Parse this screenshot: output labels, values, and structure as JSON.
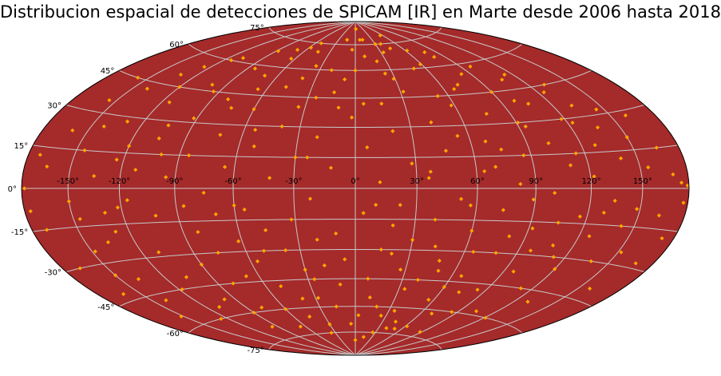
{
  "chart_data": {
    "type": "scatter",
    "title": "Distribucion espacial de detecciones de SPICAM [IR] en Marte desde 2006 hasta 2018",
    "projection": "hammer",
    "xlabel": "",
    "ylabel": "",
    "xlim": [
      -180,
      180
    ],
    "ylim": [
      -90,
      90
    ],
    "grid": true,
    "background_color": "#a52a2a",
    "marker_color": "#ffa500",
    "grid_color": "#c8c8c8",
    "x_ticks": [
      {
        "value": -150,
        "label": "-150°"
      },
      {
        "value": -120,
        "label": "-120°"
      },
      {
        "value": -90,
        "label": "-90°"
      },
      {
        "value": -60,
        "label": "-60°"
      },
      {
        "value": -30,
        "label": "-30°"
      },
      {
        "value": 0,
        "label": "0°"
      },
      {
        "value": 30,
        "label": "30°"
      },
      {
        "value": 60,
        "label": "60°"
      },
      {
        "value": 90,
        "label": "90°"
      },
      {
        "value": 120,
        "label": "120°"
      },
      {
        "value": 150,
        "label": "150°"
      }
    ],
    "y_ticks": [
      {
        "value": -75,
        "label": "-75°"
      },
      {
        "value": -60,
        "label": "-60°"
      },
      {
        "value": -45,
        "label": "-45°"
      },
      {
        "value": -30,
        "label": "-30°"
      },
      {
        "value": -15,
        "label": "-15°"
      },
      {
        "value": 0,
        "label": "0°"
      },
      {
        "value": 15,
        "label": "15°"
      },
      {
        "value": 30,
        "label": "30°"
      },
      {
        "value": 45,
        "label": "45°"
      },
      {
        "value": 60,
        "label": "60°"
      },
      {
        "value": 75,
        "label": "75°"
      }
    ],
    "series": [
      {
        "points": [
          [
            -178,
            0
          ],
          [
            -170,
            -15
          ],
          [
            -165,
            8
          ],
          [
            -160,
            22
          ],
          [
            -155,
            35
          ],
          [
            -150,
            -5
          ],
          [
            -148,
            -25
          ],
          [
            -145,
            15
          ],
          [
            -140,
            42
          ],
          [
            -138,
            -38
          ],
          [
            -135,
            5
          ],
          [
            -130,
            28
          ],
          [
            -128,
            -18
          ],
          [
            -125,
            55
          ],
          [
            -122,
            -8
          ],
          [
            -120,
            18
          ],
          [
            -118,
            -45
          ],
          [
            -115,
            38
          ],
          [
            -112,
            8
          ],
          [
            -110,
            -28
          ],
          [
            -108,
            62
          ],
          [
            -105,
            22
          ],
          [
            -102,
            -12
          ],
          [
            -100,
            48
          ],
          [
            -98,
            -52
          ],
          [
            -95,
            5
          ],
          [
            -92,
            32
          ],
          [
            -90,
            -35
          ],
          [
            -88,
            68
          ],
          [
            -85,
            15
          ],
          [
            -82,
            -20
          ],
          [
            -80,
            42
          ],
          [
            -78,
            -58
          ],
          [
            -75,
            -2
          ],
          [
            -72,
            25
          ],
          [
            -70,
            55
          ],
          [
            -68,
            -42
          ],
          [
            -65,
            10
          ],
          [
            -62,
            -25
          ],
          [
            -60,
            38
          ],
          [
            -58,
            72
          ],
          [
            -55,
            -10
          ],
          [
            -52,
            20
          ],
          [
            -50,
            -48
          ],
          [
            -48,
            50
          ],
          [
            -45,
            -65
          ],
          [
            -42,
            5
          ],
          [
            -40,
            30
          ],
          [
            -38,
            -30
          ],
          [
            -35,
            62
          ],
          [
            -32,
            -15
          ],
          [
            -30,
            15
          ],
          [
            -28,
            -55
          ],
          [
            -25,
            45
          ],
          [
            -22,
            -5
          ],
          [
            -20,
            25
          ],
          [
            -18,
            -38
          ],
          [
            -15,
            78
          ],
          [
            -12,
            10
          ],
          [
            -10,
            -22
          ],
          [
            -8,
            55
          ],
          [
            -5,
            -70
          ],
          [
            -2,
            35
          ],
          [
            0,
            -80
          ],
          [
            2,
            85
          ],
          [
            4,
            -12
          ],
          [
            6,
            20
          ],
          [
            8,
            -45
          ],
          [
            10,
            68
          ],
          [
            12,
            3
          ],
          [
            14,
            -30
          ],
          [
            16,
            42
          ],
          [
            18,
            -60
          ],
          [
            20,
            28
          ],
          [
            22,
            -8
          ],
          [
            24,
            58
          ],
          [
            26,
            -75
          ],
          [
            28,
            12
          ],
          [
            30,
            -25
          ],
          [
            32,
            48
          ],
          [
            34,
            -50
          ],
          [
            36,
            5
          ],
          [
            38,
            75
          ],
          [
            40,
            -15
          ],
          [
            42,
            32
          ],
          [
            44,
            -68
          ],
          [
            46,
            18
          ],
          [
            48,
            -35
          ],
          [
            50,
            60
          ],
          [
            52,
            -5
          ],
          [
            54,
            25
          ],
          [
            56,
            -55
          ],
          [
            58,
            40
          ],
          [
            60,
            -20
          ],
          [
            62,
            70
          ],
          [
            64,
            8
          ],
          [
            66,
            -42
          ],
          [
            68,
            22
          ],
          [
            70,
            -62
          ],
          [
            72,
            50
          ],
          [
            74,
            -10
          ],
          [
            76,
            35
          ],
          [
            78,
            -30
          ],
          [
            80,
            65
          ],
          [
            82,
            2
          ],
          [
            84,
            -48
          ],
          [
            86,
            15
          ],
          [
            88,
            -72
          ],
          [
            90,
            45
          ],
          [
            92,
            -18
          ],
          [
            94,
            28
          ],
          [
            96,
            -38
          ],
          [
            98,
            58
          ],
          [
            100,
            -2
          ],
          [
            102,
            20
          ],
          [
            104,
            -58
          ],
          [
            106,
            38
          ],
          [
            108,
            -25
          ],
          [
            110,
            10
          ],
          [
            112,
            -45
          ],
          [
            114,
            52
          ],
          [
            116,
            -12
          ],
          [
            118,
            30
          ],
          [
            120,
            -35
          ],
          [
            122,
            5
          ],
          [
            124,
            42
          ],
          [
            126,
            -20
          ],
          [
            128,
            18
          ],
          [
            130,
            -50
          ],
          [
            132,
            35
          ],
          [
            134,
            -5
          ],
          [
            136,
            25
          ],
          [
            138,
            -30
          ],
          [
            140,
            12
          ],
          [
            142,
            -15
          ],
          [
            145,
            32
          ],
          [
            148,
            -8
          ],
          [
            150,
            20
          ],
          [
            152,
            -25
          ],
          [
            155,
            8
          ],
          [
            158,
            -40
          ],
          [
            160,
            28
          ],
          [
            163,
            -10
          ],
          [
            165,
            15
          ],
          [
            168,
            -28
          ],
          [
            170,
            5
          ],
          [
            172,
            -18
          ],
          [
            175,
            2
          ],
          [
            177,
            -5
          ],
          [
            179,
            1
          ],
          [
            -176,
            -8
          ],
          [
            -172,
            12
          ],
          [
            -168,
            -30
          ],
          [
            -162,
            -42
          ],
          [
            -158,
            45
          ],
          [
            -152,
            -55
          ],
          [
            -146,
            -12
          ],
          [
            -142,
            25
          ],
          [
            -136,
            -22
          ],
          [
            -132,
            50
          ],
          [
            -126,
            -60
          ],
          [
            -124,
            12
          ],
          [
            -116,
            -5
          ],
          [
            -114,
            60
          ],
          [
            -106,
            -40
          ],
          [
            -104,
            28
          ],
          [
            -96,
            -68
          ],
          [
            -94,
            45
          ],
          [
            -86,
            -8
          ],
          [
            -84,
            58
          ],
          [
            -76,
            -30
          ],
          [
            -74,
            38
          ],
          [
            -66,
            -70
          ],
          [
            -64,
            65
          ],
          [
            -56,
            -35
          ],
          [
            -54,
            28
          ],
          [
            -46,
            -20
          ],
          [
            -44,
            70
          ],
          [
            -36,
            -75
          ],
          [
            -34,
            40
          ],
          [
            -26,
            -45
          ],
          [
            -24,
            15
          ],
          [
            -16,
            -60
          ],
          [
            -14,
            48
          ],
          [
            -6,
            -35
          ],
          [
            -4,
            72
          ],
          [
            3,
            -65
          ],
          [
            5,
            42
          ],
          [
            11,
            -55
          ],
          [
            13,
            78
          ],
          [
            19,
            -18
          ],
          [
            21,
            65
          ],
          [
            27,
            -40
          ],
          [
            29,
            55
          ],
          [
            35,
            -62
          ],
          [
            37,
            8
          ],
          [
            43,
            -28
          ],
          [
            45,
            72
          ],
          [
            51,
            -72
          ],
          [
            53,
            45
          ],
          [
            57,
            -8
          ],
          [
            59,
            62
          ],
          [
            65,
            -30
          ],
          [
            67,
            48
          ],
          [
            73,
            -50
          ],
          [
            75,
            18
          ],
          [
            81,
            -22
          ],
          [
            83,
            55
          ],
          [
            89,
            -5
          ],
          [
            91,
            30
          ],
          [
            97,
            -28
          ],
          [
            99,
            40
          ],
          [
            105,
            -15
          ],
          [
            107,
            50
          ],
          [
            113,
            -30
          ],
          [
            115,
            15
          ],
          [
            121,
            -60
          ],
          [
            123,
            28
          ],
          [
            129,
            -10
          ],
          [
            131,
            45
          ],
          [
            -70,
            -12
          ],
          [
            -66,
            48
          ],
          [
            -60,
            -60
          ],
          [
            -52,
            75
          ],
          [
            -40,
            -55
          ],
          [
            -30,
            -70
          ],
          [
            -20,
            60
          ],
          [
            -10,
            -48
          ],
          [
            0,
            60
          ],
          [
            8,
            78
          ],
          [
            15,
            -78
          ],
          [
            25,
            -65
          ],
          [
            33,
            70
          ],
          [
            40,
            -72
          ],
          [
            50,
            -40
          ],
          [
            55,
            80
          ],
          [
            62,
            -70
          ],
          [
            70,
            10
          ],
          [
            78,
            68
          ],
          [
            85,
            -60
          ],
          [
            -150,
            -35
          ],
          [
            -140,
            -48
          ],
          [
            -130,
            -10
          ],
          [
            -120,
            45
          ],
          [
            -110,
            -55
          ],
          [
            -100,
            15
          ],
          [
            -90,
            -60
          ],
          [
            -80,
            -45
          ],
          [
            -70,
            70
          ],
          [
            -60,
            -8
          ],
          [
            -50,
            -30
          ],
          [
            -40,
            55
          ],
          [
            -30,
            -40
          ],
          [
            -20,
            -25
          ],
          [
            -10,
            40
          ],
          [
            10,
            -8
          ],
          [
            20,
            -32
          ],
          [
            30,
            75
          ],
          [
            40,
            -45
          ],
          [
            60,
            -48
          ]
        ]
      }
    ]
  }
}
